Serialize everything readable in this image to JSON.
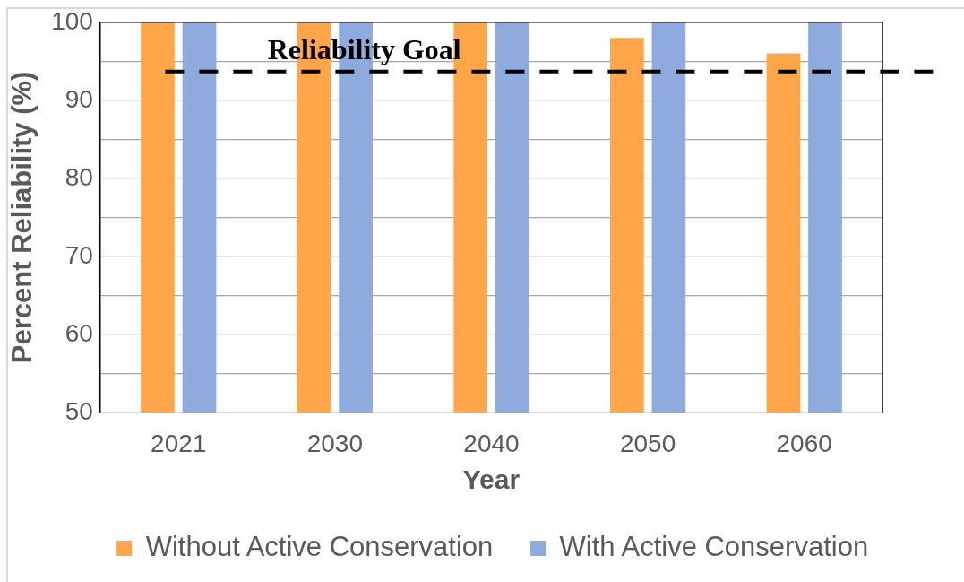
{
  "chart_data": {
    "type": "bar",
    "xlabel": "Year",
    "ylabel": "Percent Reliability (%)",
    "categories": [
      "2021",
      "2030",
      "2040",
      "2050",
      "2060"
    ],
    "series": [
      {
        "name": "Without Active Conservation",
        "color": "#ffa54a",
        "values": [
          100,
          100,
          100,
          98,
          96
        ]
      },
      {
        "name": "With Active Conservation",
        "color": "#8faadc",
        "values": [
          100,
          100,
          100,
          100,
          100
        ]
      }
    ],
    "ylim": [
      50,
      100
    ],
    "yticks": [
      50,
      {
        "value": 55,
        "label": null
      },
      60,
      {
        "value": 65,
        "label": null
      },
      70,
      {
        "value": 75,
        "label": null
      },
      80,
      {
        "value": 85,
        "label": null
      },
      90,
      {
        "value": 95,
        "label": null
      },
      100
    ],
    "grid": "y",
    "legend": "bottom",
    "ref_lines": [
      {
        "axis": "y",
        "value": 93.7,
        "label": "Reliability Goal",
        "color": "#000000",
        "line_style": "dashed"
      }
    ]
  }
}
